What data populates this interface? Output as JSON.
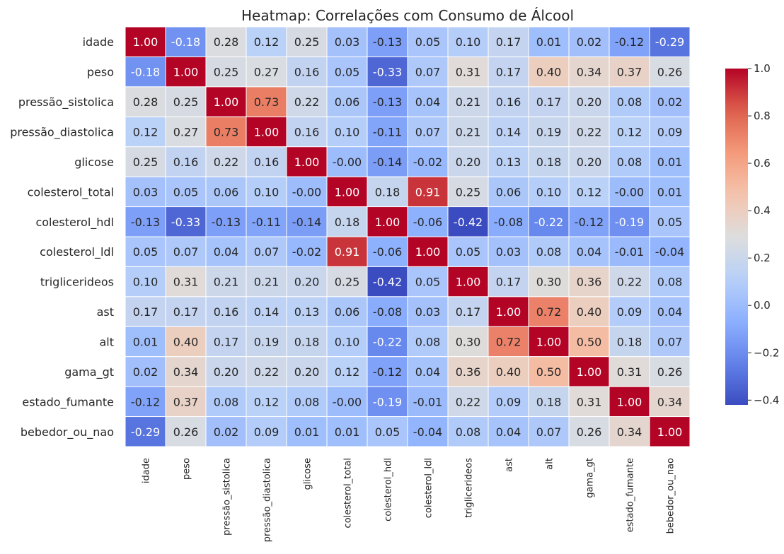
{
  "chart_data": {
    "type": "heatmap",
    "title": "Heatmap: Correlações com Consumo de Álcool",
    "rows": [
      "idade",
      "peso",
      "pressão_sistolica",
      "pressão_diastolica",
      "glicose",
      "colesterol_total",
      "colesterol_hdl",
      "colesterol_ldl",
      "triglicerideos",
      "ast",
      "alt",
      "gama_gt",
      "estado_fumante",
      "bebedor_ou_nao"
    ],
    "columns": [
      "idade",
      "peso",
      "pressão_sistolica",
      "pressão_diastolica",
      "glicose",
      "colesterol_total",
      "colesterol_hdl",
      "colesterol_ldl",
      "triglicerideos",
      "ast",
      "alt",
      "gama_gt",
      "estado_fumante",
      "bebedor_ou_nao"
    ],
    "values": [
      [
        1.0,
        -0.18,
        0.28,
        0.12,
        0.25,
        0.03,
        -0.13,
        0.05,
        0.1,
        0.17,
        0.01,
        0.02,
        -0.12,
        -0.29
      ],
      [
        -0.18,
        1.0,
        0.25,
        0.27,
        0.16,
        0.05,
        -0.33,
        0.07,
        0.31,
        0.17,
        0.4,
        0.34,
        0.37,
        0.26
      ],
      [
        0.28,
        0.25,
        1.0,
        0.73,
        0.22,
        0.06,
        -0.13,
        0.04,
        0.21,
        0.16,
        0.17,
        0.2,
        0.08,
        0.02
      ],
      [
        0.12,
        0.27,
        0.73,
        1.0,
        0.16,
        0.1,
        -0.11,
        0.07,
        0.21,
        0.14,
        0.19,
        0.22,
        0.12,
        0.09
      ],
      [
        0.25,
        0.16,
        0.22,
        0.16,
        1.0,
        -0.001,
        -0.14,
        -0.02,
        0.2,
        0.13,
        0.18,
        0.2,
        0.08,
        0.01
      ],
      [
        0.03,
        0.05,
        0.06,
        0.1,
        -0.001,
        1.0,
        0.18,
        0.91,
        0.25,
        0.06,
        0.1,
        0.12,
        -0.001,
        0.01
      ],
      [
        -0.13,
        -0.33,
        -0.13,
        -0.11,
        -0.14,
        0.18,
        1.0,
        -0.06,
        -0.42,
        -0.08,
        -0.22,
        -0.12,
        -0.19,
        0.05
      ],
      [
        0.05,
        0.07,
        0.04,
        0.07,
        -0.02,
        0.91,
        -0.06,
        1.0,
        0.05,
        0.03,
        0.08,
        0.04,
        -0.01,
        -0.04
      ],
      [
        0.1,
        0.31,
        0.21,
        0.21,
        0.2,
        0.25,
        -0.42,
        0.05,
        1.0,
        0.17,
        0.3,
        0.36,
        0.22,
        0.08
      ],
      [
        0.17,
        0.17,
        0.16,
        0.14,
        0.13,
        0.06,
        -0.08,
        0.03,
        0.17,
        1.0,
        0.72,
        0.4,
        0.09,
        0.04
      ],
      [
        0.01,
        0.4,
        0.17,
        0.19,
        0.18,
        0.1,
        -0.22,
        0.08,
        0.3,
        0.72,
        1.0,
        0.5,
        0.18,
        0.07
      ],
      [
        0.02,
        0.34,
        0.2,
        0.22,
        0.2,
        0.12,
        -0.12,
        0.04,
        0.36,
        0.4,
        0.5,
        1.0,
        0.31,
        0.26
      ],
      [
        -0.12,
        0.37,
        0.08,
        0.12,
        0.08,
        -0.001,
        -0.19,
        -0.01,
        0.22,
        0.09,
        0.18,
        0.31,
        1.0,
        0.34
      ],
      [
        -0.29,
        0.26,
        0.02,
        0.09,
        0.01,
        0.01,
        0.05,
        -0.04,
        0.08,
        0.04,
        0.07,
        0.26,
        0.34,
        1.0
      ]
    ],
    "colormap": "coolwarm",
    "vmin": -0.42,
    "vmax": 1.0,
    "value_format": "2 decimals",
    "colorbar": {
      "ticks": [
        -0.4,
        -0.2,
        0.0,
        0.2,
        0.4,
        0.6,
        0.8,
        1.0
      ],
      "tick_labels": [
        "−0.4",
        "−0.2",
        "0.0",
        "0.2",
        "0.4",
        "0.6",
        "0.8",
        "1.0"
      ],
      "placement": "right"
    },
    "gridlines": "white cell borders",
    "legend": "none"
  }
}
